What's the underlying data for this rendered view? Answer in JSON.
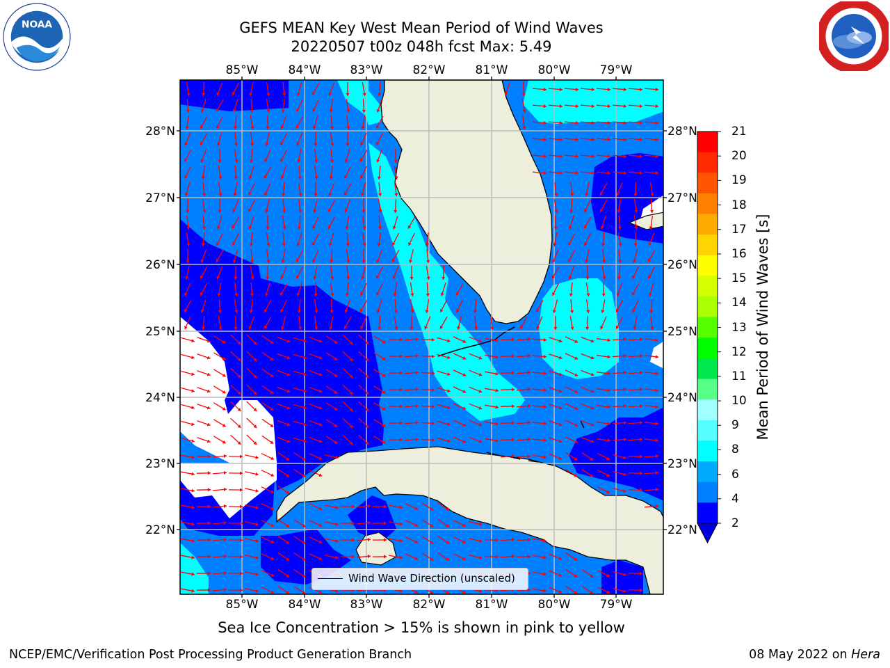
{
  "title": {
    "line1": "GEFS MEAN Key West Mean Period of Wind Waves",
    "line2": "20220507 t00z 048h fcst   Max: 5.49"
  },
  "axes": {
    "lon_labels": [
      "85°W",
      "84°W",
      "83°W",
      "82°W",
      "81°W",
      "80°W",
      "79°W"
    ],
    "lat_labels": [
      "28°N",
      "27°N",
      "26°N",
      "25°N",
      "24°N",
      "23°N",
      "22°N"
    ]
  },
  "legend": {
    "label": "Wind Wave Direction (unscaled)"
  },
  "colorbar": {
    "title": "Mean Period of Wind Waves [s]",
    "ticks": [
      "21",
      "20",
      "19",
      "18",
      "17",
      "16",
      "15",
      "14",
      "13",
      "12",
      "11",
      "10",
      "9",
      "8",
      "6",
      "4",
      "2"
    ],
    "colors": [
      "#ff0000",
      "#ff2a00",
      "#ff5500",
      "#ff8000",
      "#ffaa00",
      "#ffd400",
      "#ffff00",
      "#d4ff00",
      "#aaff00",
      "#55ff00",
      "#00ff00",
      "#00e84d",
      "#55ff88",
      "#a0ffff",
      "#55ffff",
      "#00ffff",
      "#00aaff",
      "#0080ff",
      "#0000ff"
    ]
  },
  "styles": {
    "land_color": "#eeeedd",
    "arrow_color": "#ff0000",
    "grid_color": "#bbbbbb"
  },
  "ice_note": "Sea Ice Concentration > 15% is shown in pink to yellow",
  "footer": {
    "left": "NCEP/EMC/Verification Post Processing Product Generation Branch",
    "right_date": "08 May 2022 on ",
    "right_host": "Hera"
  },
  "logos": {
    "left_icon": "noaa-logo",
    "right_icon": "nws-logo"
  }
}
